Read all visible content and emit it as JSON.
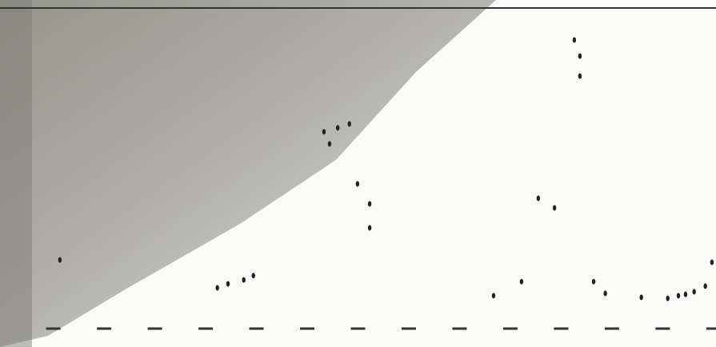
{
  "chart_data": {
    "type": "scatter",
    "x": [
      1.13,
      4.23,
      4.44,
      4.75,
      4.94,
      6.33,
      6.44,
      6.6,
      6.83,
      6.99,
      7.23,
      7.23,
      9.67,
      10.22,
      10.55,
      10.87,
      11.26,
      11.37,
      11.37,
      11.64,
      11.87,
      12.58,
      13.1,
      13.31,
      13.45,
      13.62,
      13.84,
      13.97
    ],
    "y": [
      2.07,
      1.22,
      1.34,
      1.46,
      1.59,
      5.98,
      5.61,
      6.1,
      6.22,
      4.39,
      3.78,
      3.05,
      0.98,
      1.41,
      3.95,
      3.66,
      8.78,
      8.29,
      7.68,
      1.41,
      1.05,
      0.93,
      0.9,
      0.98,
      1.02,
      1.1,
      1.27,
      2.0
    ],
    "color": "#222222",
    "xlim": [
      -0.05,
      14.05
    ],
    "ylim": [
      0,
      10
    ],
    "xticks": [
      1,
      2,
      3,
      4,
      5,
      6,
      7,
      8,
      9,
      10,
      11,
      12,
      13,
      14
    ]
  }
}
